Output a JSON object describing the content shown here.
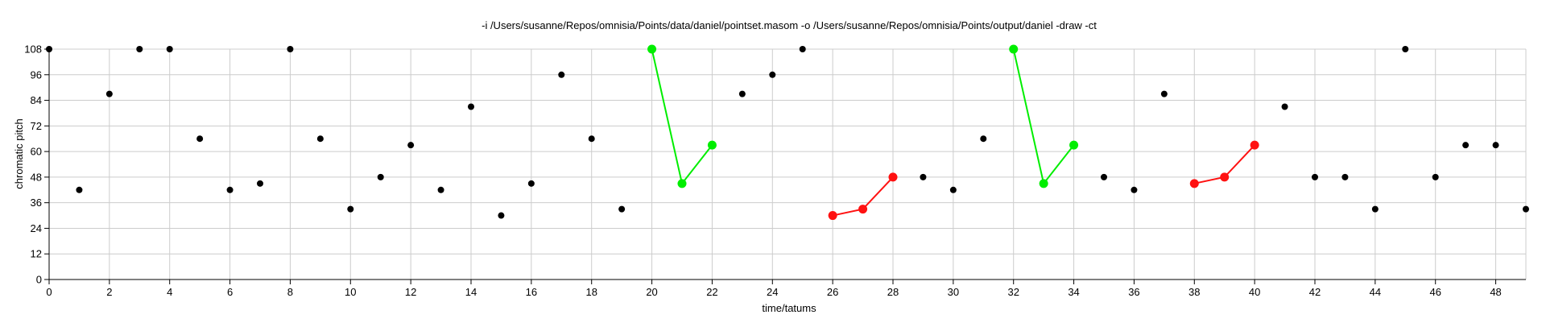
{
  "chart_data": {
    "type": "scatter",
    "title": "-i /Users/susanne/Repos/omnisia/Points/data/daniel/pointset.masom -o /Users/susanne/Repos/omnisia/Points/output/daniel -draw -ct",
    "xlabel": "time/tatums",
    "ylabel": "chromatic pitch",
    "xlim": [
      0,
      49
    ],
    "ylim": [
      0,
      108
    ],
    "xticks": [
      0,
      2,
      4,
      6,
      8,
      10,
      12,
      14,
      16,
      18,
      20,
      22,
      24,
      26,
      28,
      30,
      32,
      34,
      36,
      38,
      40,
      42,
      44,
      46,
      48
    ],
    "yticks": [
      0,
      12,
      24,
      36,
      48,
      60,
      72,
      84,
      96,
      108
    ],
    "grid": true,
    "points": [
      [
        0,
        108
      ],
      [
        1,
        42
      ],
      [
        2,
        87
      ],
      [
        3,
        108
      ],
      [
        4,
        108
      ],
      [
        5,
        66
      ],
      [
        6,
        42
      ],
      [
        7,
        45
      ],
      [
        8,
        108
      ],
      [
        9,
        66
      ],
      [
        10,
        33
      ],
      [
        11,
        48
      ],
      [
        12,
        63
      ],
      [
        13,
        42
      ],
      [
        14,
        81
      ],
      [
        15,
        30
      ],
      [
        16,
        45
      ],
      [
        17,
        96
      ],
      [
        18,
        66
      ],
      [
        19,
        33
      ],
      [
        23,
        87
      ],
      [
        24,
        96
      ],
      [
        25,
        108
      ],
      [
        29,
        48
      ],
      [
        30,
        42
      ],
      [
        31,
        66
      ],
      [
        35,
        48
      ],
      [
        36,
        42
      ],
      [
        37,
        87
      ],
      [
        41,
        81
      ],
      [
        42,
        48
      ],
      [
        43,
        48
      ],
      [
        44,
        33
      ],
      [
        45,
        108
      ],
      [
        46,
        48
      ],
      [
        47,
        63
      ],
      [
        48,
        63
      ],
      [
        49,
        33
      ]
    ],
    "patterns": [
      {
        "color": "#00ee00",
        "points": [
          [
            20,
            108
          ],
          [
            21,
            45
          ],
          [
            22,
            63
          ]
        ]
      },
      {
        "color": "#00ee00",
        "points": [
          [
            32,
            108
          ],
          [
            33,
            45
          ],
          [
            34,
            63
          ]
        ]
      },
      {
        "color": "#ff1111",
        "points": [
          [
            26,
            30
          ],
          [
            27,
            33
          ],
          [
            28,
            48
          ]
        ]
      },
      {
        "color": "#ff1111",
        "points": [
          [
            38,
            45
          ],
          [
            39,
            48
          ],
          [
            40,
            63
          ]
        ]
      }
    ],
    "point_color": "#000000"
  }
}
